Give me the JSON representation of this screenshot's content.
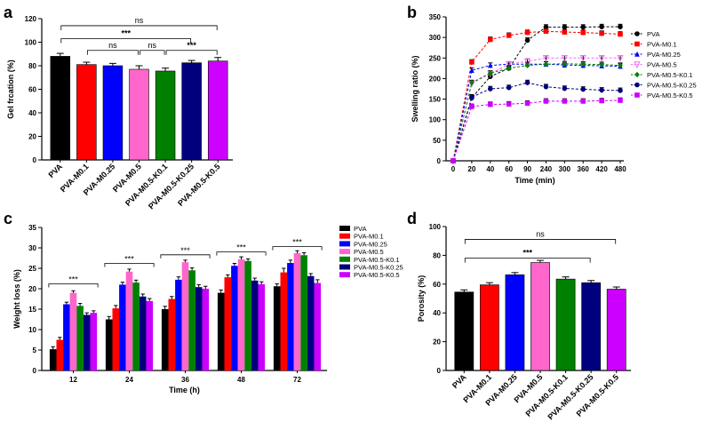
{
  "panels": {
    "a": "a",
    "b": "b",
    "c": "c",
    "d": "d"
  },
  "chart_data": [
    {
      "id": "a",
      "type": "bar",
      "ylabel": "Gel frcation (%)",
      "xlabel": "",
      "ylim": [
        0,
        120
      ],
      "yticks": [
        "0",
        "20",
        "40",
        "60",
        "80",
        "100",
        "120"
      ],
      "categories": [
        "PVA",
        "PVA-M0.1",
        "PVA-M0.25",
        "PVA-M0.5",
        "PVA-M0.5-K0.1",
        "PVA-M0.5-K0.25",
        "PVA-M0.5-K0.5"
      ],
      "values": [
        88,
        81,
        80,
        77,
        75.5,
        82.5,
        84
      ],
      "errors": [
        2.5,
        2,
        2,
        3,
        2.5,
        2,
        3
      ],
      "colors": [
        "#000000",
        "#ff0000",
        "#0000ff",
        "#ff66cc",
        "#008000",
        "#00007f",
        "#cc00ff"
      ],
      "annotations": [
        {
          "text": "ns",
          "from": 0,
          "to": 6,
          "level": 114
        },
        {
          "text": "***",
          "from": 0,
          "to": 5,
          "level": 103
        },
        {
          "text": "ns",
          "from": 1,
          "to": 3,
          "level": 93
        },
        {
          "text": "ns",
          "from": 3,
          "to": 4,
          "level": 93
        },
        {
          "text": "***",
          "from": 4,
          "to": 6,
          "level": 93
        }
      ]
    },
    {
      "id": "b",
      "type": "line",
      "ylabel": "Swelling ratio (%)",
      "xlabel": "Time (min)",
      "ylim": [
        0,
        350
      ],
      "yticks": [
        "0",
        "50",
        "100",
        "150",
        "200",
        "250",
        "300",
        "350"
      ],
      "x": [
        "0",
        "20",
        "40",
        "60",
        "90",
        "240",
        "300",
        "360",
        "420",
        "480"
      ],
      "series": [
        {
          "name": "PVA",
          "color": "#000000",
          "marker": "circle",
          "values": [
            0,
            153,
            205,
            225,
            293,
            325,
            325,
            325,
            326,
            326
          ]
        },
        {
          "name": "PVA-M0.1",
          "color": "#ff0000",
          "marker": "square",
          "values": [
            0,
            240,
            295,
            305,
            312,
            315,
            313,
            312,
            310,
            308
          ]
        },
        {
          "name": "PVA-M0.25",
          "color": "#0000ff",
          "marker": "triangle",
          "values": [
            0,
            220,
            232,
            235,
            235,
            235,
            233,
            232,
            231,
            230
          ]
        },
        {
          "name": "PVA-M0.5",
          "color": "#ff66ff",
          "marker": "triangle-down",
          "values": [
            0,
            188,
            212,
            235,
            242,
            250,
            250,
            250,
            250,
            250
          ]
        },
        {
          "name": "PVA-M0.5-K0.1",
          "color": "#008000",
          "marker": "diamond",
          "values": [
            0,
            190,
            213,
            225,
            232,
            235,
            236,
            235,
            234,
            232
          ]
        },
        {
          "name": "PVA-M0.5-K0.25",
          "color": "#00007f",
          "marker": "circle",
          "values": [
            0,
            155,
            175,
            178,
            190,
            180,
            176,
            174,
            172,
            171
          ]
        },
        {
          "name": "PVA-M0.5-K0.5",
          "color": "#cc00ff",
          "marker": "square",
          "values": [
            0,
            132,
            137,
            138,
            140,
            145,
            145,
            145,
            146,
            147
          ]
        }
      ]
    },
    {
      "id": "c",
      "type": "bar",
      "ylabel": "Weight loss (%)",
      "xlabel": "Time (h)",
      "ylim": [
        0,
        35
      ],
      "yticks": [
        "0",
        "5",
        "10",
        "15",
        "20",
        "25",
        "30",
        "35"
      ],
      "categories": [
        "12",
        "24",
        "36",
        "48",
        "72"
      ],
      "series": [
        {
          "name": "PVA",
          "color": "#000000",
          "values": [
            5.2,
            12.5,
            15.0,
            19.0,
            20.6
          ],
          "errors": [
            0.6,
            0.7,
            0.7,
            0.7,
            0.6
          ]
        },
        {
          "name": "PVA-M0.1",
          "color": "#ff0000",
          "values": [
            7.5,
            15.2,
            17.5,
            22.8,
            24.0
          ],
          "errors": [
            0.6,
            0.7,
            0.6,
            0.6,
            1.0
          ]
        },
        {
          "name": "PVA-M0.25",
          "color": "#0000ff",
          "values": [
            16.2,
            21.0,
            22.2,
            25.6,
            26.3
          ],
          "errors": [
            0.5,
            0.6,
            0.7,
            0.6,
            0.7
          ]
        },
        {
          "name": "PVA-M0.5",
          "color": "#ff66cc",
          "values": [
            19.0,
            24.2,
            26.5,
            27.2,
            28.7
          ],
          "errors": [
            0.5,
            0.6,
            0.5,
            0.6,
            0.6
          ]
        },
        {
          "name": "PVA-M0.5-K0.1",
          "color": "#008000",
          "values": [
            15.8,
            21.5,
            24.5,
            26.8,
            28.2
          ],
          "errors": [
            0.6,
            0.6,
            0.6,
            0.5,
            0.6
          ]
        },
        {
          "name": "PVA-M0.5-K0.25",
          "color": "#00007f",
          "values": [
            13.6,
            18.1,
            20.4,
            22.0,
            23.1
          ],
          "errors": [
            0.5,
            0.6,
            0.6,
            0.6,
            0.6
          ]
        },
        {
          "name": "PVA-M0.5-K0.5",
          "color": "#cc00ff",
          "values": [
            14.1,
            17.0,
            20.0,
            21.1,
            21.4
          ],
          "errors": [
            0.5,
            0.6,
            0.6,
            0.6,
            0.8
          ]
        }
      ],
      "annotations": [
        {
          "text": "***",
          "group": 0,
          "level": 21.2
        },
        {
          "text": "***",
          "group": 1,
          "level": 26.2
        },
        {
          "text": "***",
          "group": 2,
          "level": 28.3
        },
        {
          "text": "***",
          "group": 3,
          "level": 29.0
        },
        {
          "text": "***",
          "group": 4,
          "level": 30.3
        }
      ]
    },
    {
      "id": "d",
      "type": "bar",
      "ylabel": "Porosity (%)",
      "xlabel": "",
      "ylim": [
        0,
        100
      ],
      "yticks": [
        "0",
        "20",
        "40",
        "60",
        "80",
        "100"
      ],
      "categories": [
        "PVA",
        "PVA-M0.1",
        "PVA-M0.25",
        "PVA-M0.5",
        "PVA-M0.5-K0.1",
        "PVA-M0.5-K0.25",
        "PVA-M0.5-K0.5"
      ],
      "values": [
        54.5,
        59.5,
        66.5,
        75,
        63.5,
        61,
        56.5
      ],
      "errors": [
        1.5,
        1.5,
        1.5,
        1.5,
        1.5,
        1.5,
        1.5
      ],
      "colors": [
        "#000000",
        "#ff0000",
        "#0000ff",
        "#ff66cc",
        "#008000",
        "#00007f",
        "#cc00ff"
      ],
      "annotations": [
        {
          "text": "ns",
          "from": 0,
          "to": 6,
          "level": 91
        },
        {
          "text": "***",
          "from": 0,
          "to": 5,
          "level": 78
        }
      ]
    }
  ]
}
